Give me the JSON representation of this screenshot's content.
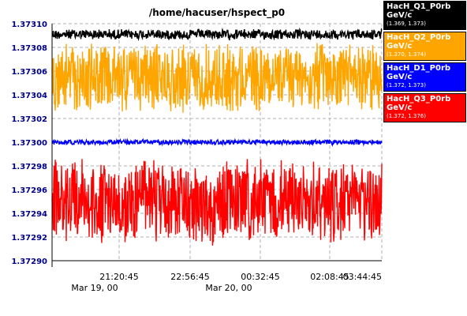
{
  "chart_data": {
    "type": "line",
    "title": "/home/hacuser/hspect_p0",
    "ylim": [
      1.3729,
      1.3731
    ],
    "yticks": [
      "1.37310",
      "1.37308",
      "1.37306",
      "1.37304",
      "1.37302",
      "1.37300",
      "1.37298",
      "1.37296",
      "1.37294",
      "1.37292",
      "1.37290"
    ],
    "xticks": [
      "21:20:45",
      "22:56:45",
      "00:32:45",
      "02:08:45",
      "03:44:45"
    ],
    "date_labels": [
      "Mar 19, 00",
      "Mar 20, 00"
    ],
    "grid": true,
    "legend_position": "right",
    "series": [
      {
        "name": "HacH_Q1_P0rb",
        "unit": "GeV/c",
        "range_label": "(1.369, 1.373)",
        "color": "#000000",
        "band": [
          1.373087,
          1.373095
        ]
      },
      {
        "name": "HacH_Q2_P0rb",
        "unit": "GeV/c",
        "range_label": "(1.370, 1.374)",
        "color": "#ffa500",
        "band": [
          1.373028,
          1.373081
        ]
      },
      {
        "name": "HacH_D1_P0rb",
        "unit": "GeV/c",
        "range_label": "(1.372, 1.373)",
        "color": "#0000ff",
        "band": [
          1.372998,
          1.373002
        ]
      },
      {
        "name": "HacH_Q3_P0rb",
        "unit": "GeV/c",
        "range_label": "(1.372, 1.376)",
        "color": "#ff0000",
        "band": [
          1.372917,
          1.372981
        ]
      }
    ]
  }
}
